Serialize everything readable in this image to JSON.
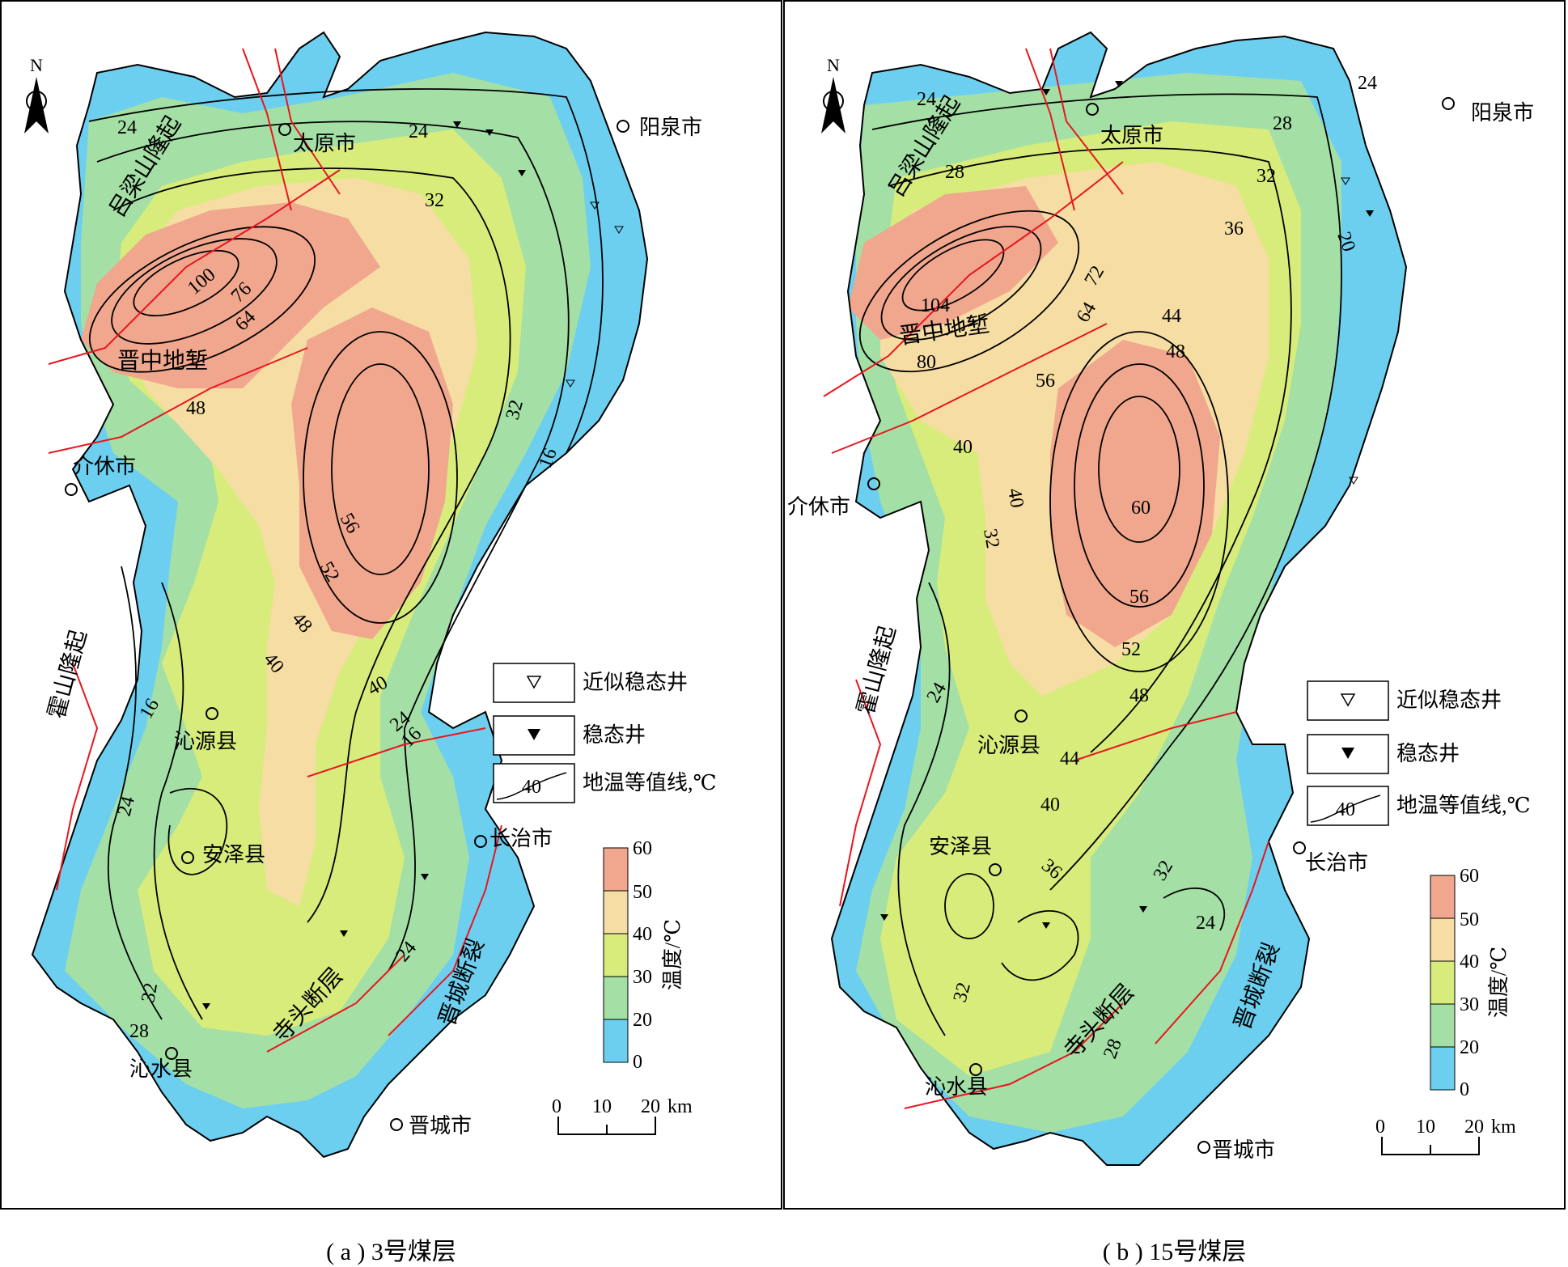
{
  "colors": {
    "band_0_20": "#6ccff0",
    "band_20_30": "#a4dfa5",
    "band_30_40": "#d8ec7c",
    "band_40_50": "#f6dda3",
    "band_50_60": "#f0a78e",
    "fault": "#e8161f",
    "contour": "#000000",
    "frame": "#000000"
  },
  "labels": {
    "north": "N",
    "km_unit": "km",
    "scale_ticks": [
      "0",
      "10",
      "20"
    ],
    "colorbar_title": "温度/℃",
    "colorbar_ticks": [
      "60",
      "50",
      "40",
      "30",
      "20",
      "0"
    ]
  },
  "legend": {
    "approx_steady_well": "近似稳态井",
    "steady_well": "稳态井",
    "isotherm": "地温等值线,℃",
    "isotherm_sample": "40"
  },
  "panels": [
    {
      "id": "a",
      "caption": "( a ) 3号煤层",
      "places": [
        "太原市",
        "阳泉市",
        "介休市",
        "沁源县",
        "安泽县",
        "长治市",
        "沁水县",
        "晋城市"
      ],
      "structures": [
        "吕梁山隆起",
        "晋中地堑",
        "霍山隆起",
        "寺头断层",
        "晋城断裂"
      ],
      "contour_labels": [
        "24",
        "24",
        "32",
        "100",
        "76",
        "64",
        "48",
        "56",
        "52",
        "48",
        "40",
        "40",
        "32",
        "16",
        "16",
        "24",
        "24",
        "16",
        "32",
        "28",
        "24"
      ]
    },
    {
      "id": "b",
      "caption": "( b ) 15号煤层",
      "places": [
        "太原市",
        "阳泉市",
        "介休市",
        "沁源县",
        "安泽县",
        "长治市",
        "沁水县",
        "晋城市"
      ],
      "structures": [
        "吕梁山隆起",
        "晋中地堑",
        "霍山隆起",
        "寺头断层",
        "晋城断裂"
      ],
      "contour_labels": [
        "24",
        "28",
        "24",
        "28",
        "32",
        "36",
        "20",
        "104",
        "80",
        "72",
        "64",
        "44",
        "48",
        "56",
        "40",
        "60",
        "56",
        "52",
        "48",
        "32",
        "40",
        "44",
        "40",
        "36",
        "32",
        "24",
        "24",
        "32",
        "28"
      ]
    }
  ]
}
